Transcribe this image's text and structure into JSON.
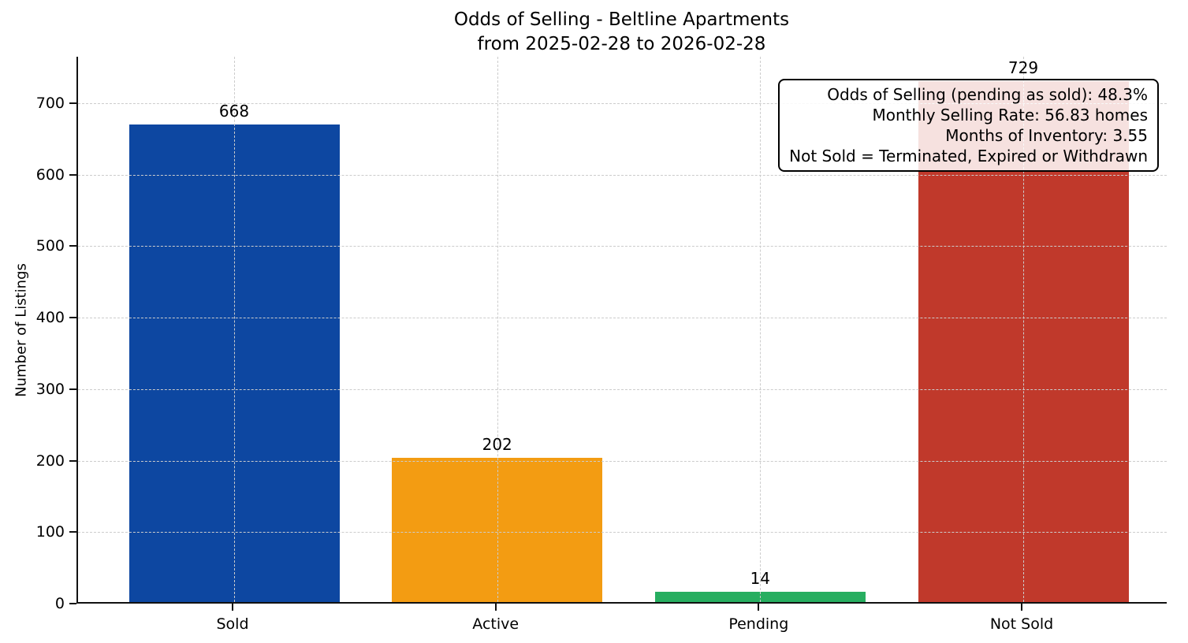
{
  "title": {
    "line1": "Odds of Selling - Beltline Apartments",
    "line2": "from 2025-02-28 to 2026-02-28"
  },
  "chart_data": {
    "type": "bar",
    "title": "Odds of Selling - Beltline Apartments\nfrom 2025-02-28 to 2026-02-28",
    "categories": [
      "Sold",
      "Active",
      "Pending",
      "Not Sold"
    ],
    "values": [
      668,
      202,
      14,
      729
    ],
    "bar_colors": [
      "#0d47a1",
      "#f39c12",
      "#27ae60",
      "#c0392b"
    ],
    "xlabel": "",
    "ylabel": "Number of Listings",
    "ylim": [
      0,
      765
    ],
    "yticks": [
      0,
      100,
      200,
      300,
      400,
      500,
      600,
      700
    ],
    "grid": true,
    "grid_style": "dashed",
    "annotation": {
      "lines": [
        "Odds of Selling (pending as sold): 48.3%",
        "Monthly Selling Rate: 56.83 homes",
        "Months of Inventory: 3.55",
        "Not Sold = Terminated, Expired or Withdrawn"
      ]
    }
  }
}
